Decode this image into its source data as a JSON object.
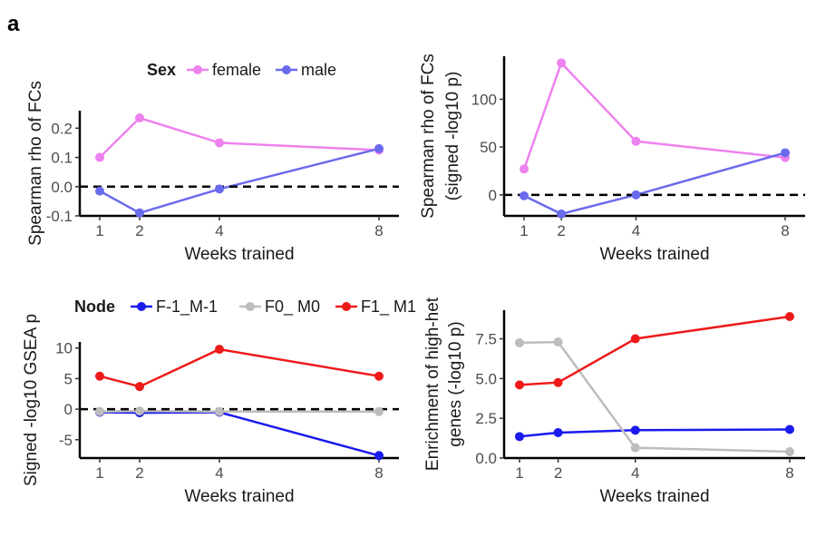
{
  "figure": {
    "panel_letter": "a"
  },
  "chart_data": [
    {
      "type": "line",
      "xlabel": "Weeks trained",
      "ylabel": "Spearman rho of FCs",
      "x": [
        1,
        2,
        4,
        8
      ],
      "xticks": [
        "1",
        "2",
        "4",
        "8"
      ],
      "yticks": [
        -0.1,
        0.0,
        0.1,
        0.2
      ],
      "ytick_labels": [
        "-0.1",
        "0.0",
        "0.1",
        "0.2"
      ],
      "ylim": [
        -0.1,
        0.26
      ],
      "reference_line": 0,
      "legend": {
        "title": "Sex",
        "position": "top"
      },
      "series": [
        {
          "name": "female",
          "color": "#ee82ee",
          "values": [
            0.1,
            0.235,
            0.15,
            0.125
          ]
        },
        {
          "name": "male",
          "color": "#6a6aee",
          "values": [
            -0.015,
            -0.09,
            -0.008,
            0.13
          ]
        }
      ]
    },
    {
      "type": "line",
      "xlabel": "Weeks trained",
      "ylabel": "Spearman rho of FCs",
      "ylabel2": "(signed -log10 p)",
      "x": [
        1,
        2,
        4,
        8
      ],
      "xticks": [
        "1",
        "2",
        "4",
        "8"
      ],
      "yticks": [
        0,
        50,
        100
      ],
      "ytick_labels": [
        "0",
        "50",
        "100"
      ],
      "ylim": [
        -22,
        145
      ],
      "reference_line": 0,
      "series": [
        {
          "name": "female",
          "color": "#ee82ee",
          "values": [
            27,
            138,
            56,
            39
          ]
        },
        {
          "name": "male",
          "color": "#6a6aee",
          "values": [
            -1,
            -20,
            0,
            44
          ]
        }
      ]
    },
    {
      "type": "line",
      "xlabel": "Weeks trained",
      "ylabel": "Signed -log10 GSEA p",
      "x": [
        1,
        2,
        4,
        8
      ],
      "xticks": [
        "1",
        "2",
        "4",
        "8"
      ],
      "yticks": [
        -5,
        0,
        5,
        10
      ],
      "ytick_labels": [
        "-5",
        "0",
        "5",
        "10"
      ],
      "ylim": [
        -8,
        11
      ],
      "reference_line": 0,
      "legend": {
        "title": "Node",
        "position": "top"
      },
      "series": [
        {
          "name": "F-1_M-1",
          "color": "#1a1aee",
          "values": [
            -0.5,
            -0.6,
            -0.5,
            -7.6
          ]
        },
        {
          "name": "F0_ M0",
          "color": "#bdbdbd",
          "values": [
            -0.4,
            -0.3,
            -0.4,
            -0.4
          ]
        },
        {
          "name": "F1_ M1",
          "color": "#ee1a1a",
          "values": [
            5.4,
            3.7,
            9.8,
            5.4
          ]
        }
      ]
    },
    {
      "type": "line",
      "xlabel": "Weeks trained",
      "ylabel": "Enrichment of high-het",
      "ylabel2": "genes (-log10 p)",
      "x": [
        1,
        2,
        4,
        8
      ],
      "xticks": [
        "1",
        "2",
        "4",
        "8"
      ],
      "yticks": [
        0.0,
        2.5,
        5.0,
        7.5
      ],
      "ytick_labels": [
        "0.0",
        "2.5",
        "5.0",
        "7.5"
      ],
      "ylim": [
        0,
        9.3
      ],
      "series": [
        {
          "name": "F-1_M-1",
          "color": "#1a1aee",
          "values": [
            1.35,
            1.6,
            1.75,
            1.8
          ]
        },
        {
          "name": "F0_ M0",
          "color": "#bdbdbd",
          "values": [
            7.25,
            7.3,
            0.65,
            0.4
          ]
        },
        {
          "name": "F1_ M1",
          "color": "#ee1a1a",
          "values": [
            4.6,
            4.75,
            7.5,
            8.9
          ]
        }
      ]
    }
  ]
}
